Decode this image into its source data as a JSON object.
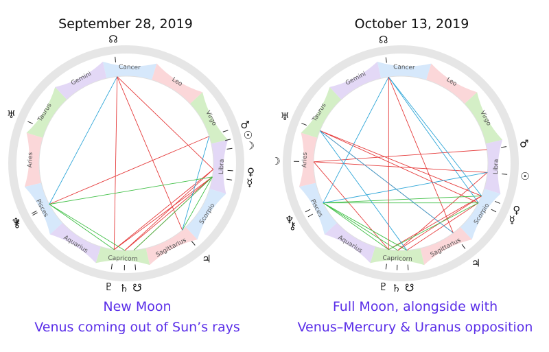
{
  "colors": {
    "fire": "#fbd7d9",
    "earth": "#d4efc6",
    "air": "#e3d8f6",
    "water": "#d6e8fb",
    "outer_ring": "#e6e6e6",
    "hard_aspect": "#e53a3a",
    "soft_aspect": "#2fa6d8",
    "trine_aspect": "#3fbf45",
    "caption": "#5a2ee8"
  },
  "signs": [
    {
      "name": "Aries",
      "element": "fire"
    },
    {
      "name": "Taurus",
      "element": "earth"
    },
    {
      "name": "Gemini",
      "element": "air"
    },
    {
      "name": "Cancer",
      "element": "water"
    },
    {
      "name": "Leo",
      "element": "fire"
    },
    {
      "name": "Virgo",
      "element": "earth"
    },
    {
      "name": "Libra",
      "element": "air"
    },
    {
      "name": "Scorpio",
      "element": "water"
    },
    {
      "name": "Sagittarius",
      "element": "fire"
    },
    {
      "name": "Capricorn",
      "element": "earth"
    },
    {
      "name": "Aquarius",
      "element": "air"
    },
    {
      "name": "Pisces",
      "element": "water"
    }
  ],
  "charts": [
    {
      "title": "September 28, 2019",
      "caption_lines": [
        "New Moon",
        "Venus coming out of Sun’s rays"
      ],
      "bodies": [
        {
          "name": "pluto",
          "glyph": "♇",
          "lon": 291
        },
        {
          "name": "saturn",
          "glyph": "♄",
          "lon": 284
        },
        {
          "name": "south-node",
          "glyph": "☋",
          "lon": 278
        },
        {
          "name": "jupiter",
          "glyph": "♃",
          "lon": 243
        },
        {
          "name": "mercury",
          "glyph": "☿",
          "lon": 202
        },
        {
          "name": "venus",
          "glyph": "♀",
          "lon": 197
        },
        {
          "name": "moon",
          "glyph": "☽",
          "lon": 185
        },
        {
          "name": "sun",
          "glyph": "☉",
          "lon": 180
        },
        {
          "name": "mars",
          "glyph": "♂",
          "lon": 175
        },
        {
          "name": "north-node",
          "glyph": "☊",
          "lon": 97
        },
        {
          "name": "uranus",
          "glyph": "♅",
          "lon": 36
        },
        {
          "name": "neptune",
          "glyph": "♆",
          "lon": 345
        },
        {
          "name": "chiron",
          "glyph": "⚷",
          "lon": 344
        }
      ],
      "aspects": [
        [
          291,
          202,
          "hard"
        ],
        [
          291,
          197,
          "hard"
        ],
        [
          284,
          202,
          "hard"
        ],
        [
          284,
          197,
          "hard"
        ],
        [
          278,
          202,
          "hard"
        ],
        [
          243,
          97,
          "hard"
        ],
        [
          291,
          97,
          "hard"
        ],
        [
          345,
          175,
          "hard"
        ],
        [
          197,
          97,
          "hard"
        ],
        [
          291,
          345,
          "trine"
        ],
        [
          284,
          345,
          "trine"
        ],
        [
          278,
          202,
          "trine"
        ],
        [
          243,
          202,
          "trine"
        ],
        [
          345,
          97,
          "soft"
        ],
        [
          243,
          175,
          "soft"
        ],
        [
          345,
          202,
          "trine"
        ]
      ]
    },
    {
      "title": "October 13, 2019",
      "caption_lines": [
        "Full Moon, alongside with",
        "Venus–Mercury & Uranus opposition"
      ],
      "bodies": [
        {
          "name": "pluto",
          "glyph": "♇",
          "lon": 291
        },
        {
          "name": "saturn",
          "glyph": "♄",
          "lon": 285
        },
        {
          "name": "south-node",
          "glyph": "☋",
          "lon": 279
        },
        {
          "name": "jupiter",
          "glyph": "♃",
          "lon": 246
        },
        {
          "name": "mercury",
          "glyph": "☿",
          "lon": 220
        },
        {
          "name": "venus",
          "glyph": "♀",
          "lon": 215
        },
        {
          "name": "sun",
          "glyph": "☉",
          "lon": 199
        },
        {
          "name": "mars",
          "glyph": "♂",
          "lon": 184
        },
        {
          "name": "moon",
          "glyph": "☽",
          "lon": 14
        },
        {
          "name": "neptune",
          "glyph": "♆",
          "lon": 346
        },
        {
          "name": "chiron",
          "glyph": "⚷",
          "lon": 343
        },
        {
          "name": "uranus",
          "glyph": "♅",
          "lon": 35
        },
        {
          "name": "north-node",
          "glyph": "☊",
          "lon": 95
        }
      ],
      "aspects": [
        [
          291,
          215,
          "hard"
        ],
        [
          285,
          215,
          "hard"
        ],
        [
          279,
          220,
          "hard"
        ],
        [
          246,
          35,
          "hard"
        ],
        [
          291,
          14,
          "hard"
        ],
        [
          285,
          199,
          "hard"
        ],
        [
          199,
          14,
          "hard"
        ],
        [
          220,
          35,
          "hard"
        ],
        [
          215,
          35,
          "hard"
        ],
        [
          246,
          95,
          "hard"
        ],
        [
          184,
          14,
          "hard"
        ],
        [
          291,
          346,
          "trine"
        ],
        [
          285,
          346,
          "trine"
        ],
        [
          279,
          346,
          "trine"
        ],
        [
          220,
          346,
          "trine"
        ],
        [
          215,
          346,
          "trine"
        ],
        [
          291,
          220,
          "trine"
        ],
        [
          199,
          346,
          "soft"
        ],
        [
          220,
          95,
          "soft"
        ],
        [
          215,
          95,
          "soft"
        ],
        [
          246,
          35,
          "soft"
        ],
        [
          279,
          35,
          "soft"
        ],
        [
          346,
          95,
          "soft"
        ],
        [
          291,
          95,
          "hard"
        ]
      ]
    }
  ]
}
